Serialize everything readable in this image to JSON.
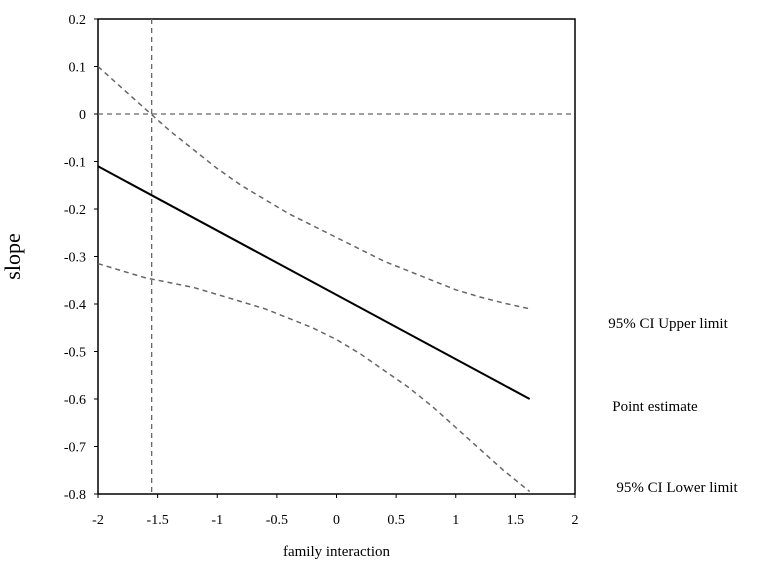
{
  "chart_data": {
    "type": "line",
    "title": "",
    "xlabel": "family interaction",
    "ylabel": "slope",
    "xlim": [
      -2,
      2
    ],
    "ylim": [
      -0.8,
      0.2
    ],
    "xticks": [
      "-2",
      "-1.5",
      "-1",
      "-0.5",
      "0",
      "0.5",
      "1",
      "1.5",
      "2"
    ],
    "yticks": [
      "0.2",
      "0.1",
      "0",
      "-0.1",
      "-0.2",
      "-0.3",
      "-0.4",
      "-0.5",
      "-0.6",
      "-0.7",
      "-0.8"
    ],
    "grid": false,
    "reference_lines": [
      {
        "axis": "x",
        "value": -1.55,
        "style": "dashed"
      },
      {
        "axis": "y",
        "value": 0,
        "style": "dashed"
      }
    ],
    "series": [
      {
        "name": "95% CI Upper limit",
        "style": "dashed",
        "color": "#666666",
        "x": [
          -2.0,
          -1.8,
          -1.6,
          -1.4,
          -1.2,
          -1.0,
          -0.8,
          -0.6,
          -0.4,
          -0.2,
          0.0,
          0.2,
          0.4,
          0.6,
          0.8,
          1.0,
          1.2,
          1.4,
          1.62
        ],
        "y": [
          0.1,
          0.055,
          0.01,
          -0.035,
          -0.075,
          -0.115,
          -0.15,
          -0.18,
          -0.21,
          -0.235,
          -0.26,
          -0.285,
          -0.31,
          -0.33,
          -0.35,
          -0.37,
          -0.385,
          -0.398,
          -0.41
        ]
      },
      {
        "name": "Point estimate",
        "style": "solid",
        "color": "#000000",
        "x": [
          -2.0,
          1.62
        ],
        "y": [
          -0.11,
          -0.6
        ]
      },
      {
        "name": "95% CI Lower limit",
        "style": "dashed",
        "color": "#666666",
        "x": [
          -2.0,
          -1.8,
          -1.6,
          -1.4,
          -1.2,
          -1.0,
          -0.8,
          -0.6,
          -0.4,
          -0.2,
          0.0,
          0.2,
          0.4,
          0.6,
          0.8,
          1.0,
          1.2,
          1.4,
          1.62
        ],
        "y": [
          -0.315,
          -0.33,
          -0.345,
          -0.355,
          -0.365,
          -0.38,
          -0.395,
          -0.41,
          -0.43,
          -0.45,
          -0.475,
          -0.505,
          -0.54,
          -0.575,
          -0.615,
          -0.66,
          -0.705,
          -0.75,
          -0.795
        ]
      }
    ]
  }
}
